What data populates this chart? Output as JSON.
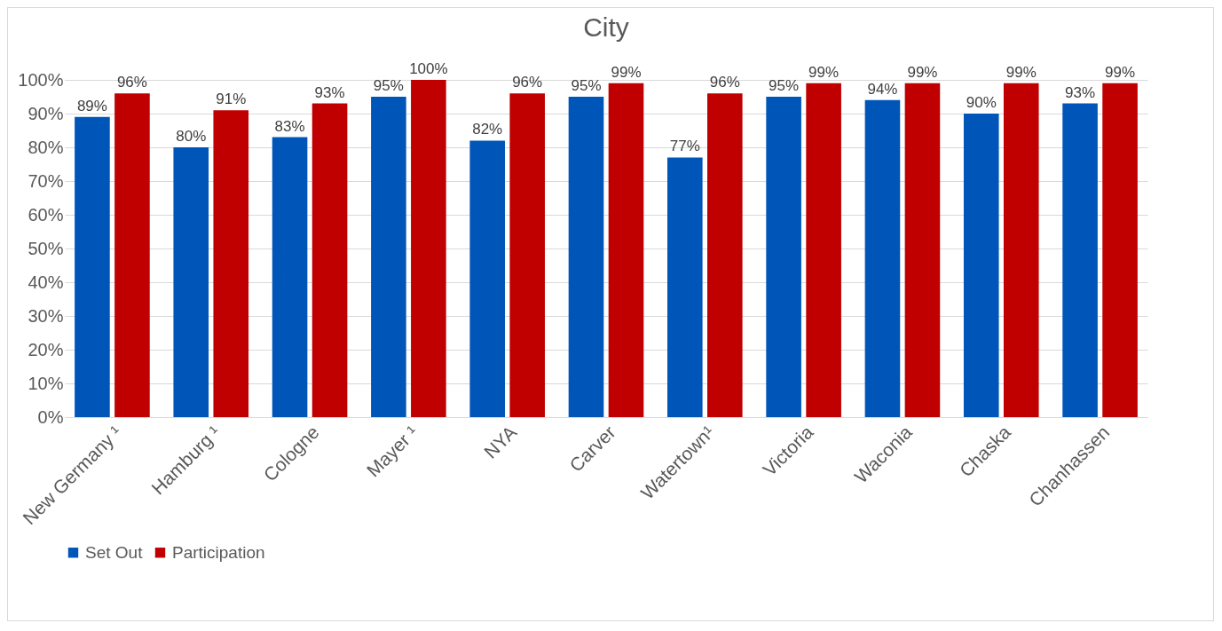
{
  "chart_data": {
    "type": "bar",
    "title": "City",
    "categories": [
      "New Germany ¹",
      "Hamburg ¹",
      "Cologne",
      "Mayer ¹",
      "NYA",
      "Carver",
      "Watertown¹",
      "Victoria",
      "Waconia",
      "Chaska",
      "Chanhassen"
    ],
    "series": [
      {
        "name": "Set Out",
        "color": "#0055b8",
        "values": [
          89,
          80,
          83,
          95,
          82,
          95,
          77,
          95,
          94,
          90,
          93
        ],
        "value_labels": [
          "89%",
          "80%",
          "83%",
          "95%",
          "82%",
          "95%",
          "77%",
          "95%",
          "94%",
          "90%",
          "93%"
        ]
      },
      {
        "name": "Participation",
        "color": "#c00000",
        "values": [
          96,
          91,
          93,
          100,
          96,
          99,
          96,
          99,
          99,
          99,
          99
        ],
        "value_labels": [
          "96%",
          "91%",
          "93%",
          "100%",
          "96%",
          "99%",
          "96%",
          "99%",
          "99%",
          "99%",
          "99%"
        ]
      }
    ],
    "ylim": [
      0,
      100
    ],
    "yticks": [
      {
        "value": 0,
        "label": "0%"
      },
      {
        "value": 10,
        "label": "10%"
      },
      {
        "value": 20,
        "label": "20%"
      },
      {
        "value": 30,
        "label": "30%"
      },
      {
        "value": 40,
        "label": "40%"
      },
      {
        "value": 50,
        "label": "50%"
      },
      {
        "value": 60,
        "label": "60%"
      },
      {
        "value": 70,
        "label": "70%"
      },
      {
        "value": 80,
        "label": "80%"
      },
      {
        "value": 90,
        "label": "90%"
      },
      {
        "value": 100,
        "label": "100%"
      }
    ],
    "grid": "y",
    "legend": "bottom"
  }
}
